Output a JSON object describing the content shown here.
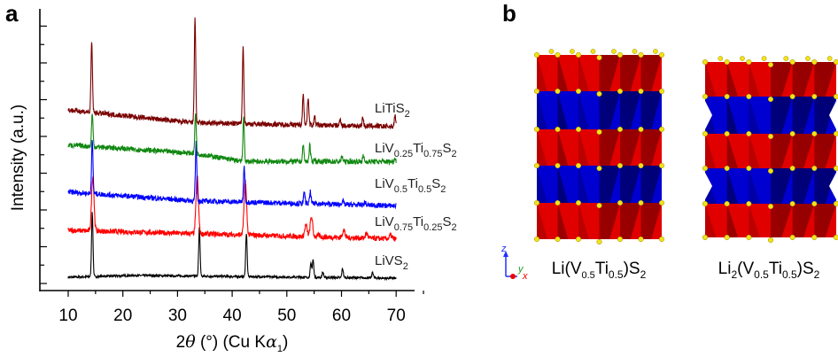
{
  "panels": {
    "a": "a",
    "b": "b"
  },
  "chart_data": {
    "type": "line",
    "xlabel_parts": {
      "pre": "2",
      "theta": "θ",
      "mid": " (°) (Cu K",
      "alpha": "α",
      "sub": "1",
      "post": ")"
    },
    "ylabel": "Intensity (a.u.)",
    "xlim": [
      5,
      75
    ],
    "ylim": [
      0,
      15.3
    ],
    "xticks": [
      10,
      20,
      30,
      40,
      50,
      60,
      70
    ],
    "y_tick_labels": "none",
    "grid": false,
    "legend": "labels at right end of each trace",
    "series": [
      {
        "name": "LiVS2",
        "label": {
          "main": "LiVS",
          "s1": "2"
        },
        "color": "#000000",
        "baseline": [
          [
            10,
            0.72
          ],
          [
            22,
            0.82
          ],
          [
            70,
            0.67
          ]
        ],
        "peaks": [
          [
            14.4,
            4.2
          ],
          [
            34.0,
            3.4
          ],
          [
            42.6,
            3.1
          ],
          [
            54.4,
            1.44
          ],
          [
            54.8,
            1.68
          ],
          [
            56.6,
            1.0
          ],
          [
            60.2,
            1.2
          ],
          [
            65.7,
            1.0
          ]
        ]
      },
      {
        "name": "LiV0.75Ti0.25S2",
        "label": {
          "main": "LiV",
          "s1": "0.75",
          "mid": "Ti",
          "s2": "0.25",
          "end": "S",
          "s3": "2"
        },
        "color": "#ff0000",
        "baseline": [
          [
            10,
            3.27
          ],
          [
            70,
            2.8
          ]
        ],
        "peaks": [
          [
            14.5,
            6.2
          ],
          [
            33.6,
            6.2
          ],
          [
            42.4,
            6.0
          ],
          [
            53.5,
            3.55
          ],
          [
            54.5,
            4.0
          ],
          [
            55.8,
            3.0
          ],
          [
            60.4,
            3.3
          ],
          [
            64.6,
            3.1
          ],
          [
            69.0,
            3.0
          ]
        ]
      },
      {
        "name": "LiV0.5Ti0.5S2",
        "label": {
          "main": "LiV",
          "s1": "0.5",
          "mid": "Ti",
          "s2": "0.5",
          "end": "S",
          "s3": "2"
        },
        "color": "#0000ff",
        "baseline": [
          [
            10,
            5.35
          ],
          [
            33,
            4.87
          ],
          [
            70,
            4.6
          ]
        ],
        "peaks": [
          [
            14.4,
            8.1
          ],
          [
            33.4,
            8.0
          ],
          [
            42.2,
            6.7
          ],
          [
            53.2,
            5.3
          ],
          [
            54.3,
            5.35
          ],
          [
            55.4,
            4.8
          ],
          [
            60.2,
            4.9
          ],
          [
            64.3,
            4.8
          ]
        ]
      },
      {
        "name": "LiV0.25Ti0.75S2",
        "label": {
          "main": "LiV",
          "s1": "0.25",
          "mid": "Ti",
          "s2": "0.75",
          "end": "S",
          "s3": "2"
        },
        "color": "#118811",
        "baseline": [
          [
            10,
            7.9
          ],
          [
            33,
            7.45
          ],
          [
            42,
            7.0
          ],
          [
            70,
            7.0
          ]
        ],
        "peaks": [
          [
            14.4,
            9.6
          ],
          [
            33.3,
            9.6
          ],
          [
            42.1,
            9.3
          ],
          [
            53.0,
            7.9
          ],
          [
            54.2,
            7.9
          ],
          [
            55.1,
            7.15
          ],
          [
            60.1,
            7.3
          ],
          [
            64.0,
            7.3
          ],
          [
            69.8,
            7.2
          ]
        ]
      },
      {
        "name": "LiTiS2",
        "label": {
          "main": "LiTiS",
          "s1": "2"
        },
        "color": "#7a0000",
        "baseline": [
          [
            10,
            9.8
          ],
          [
            33,
            9.1
          ],
          [
            70,
            8.9
          ]
        ],
        "peaks": [
          [
            14.3,
            13.5
          ],
          [
            33.2,
            14.7
          ],
          [
            42.0,
            13.2
          ],
          [
            53.0,
            10.7
          ],
          [
            53.9,
            10.5
          ],
          [
            55.1,
            9.4
          ],
          [
            59.8,
            9.3
          ],
          [
            63.9,
            9.4
          ],
          [
            69.8,
            9.5
          ]
        ]
      }
    ]
  },
  "structures": {
    "left_label": {
      "a": "Li(V",
      "s1": "0.5",
      "b": "Ti",
      "s2": "0.5",
      "c": ")S",
      "s3": "2"
    },
    "right_label": {
      "a": "Li",
      "s0": "2",
      "b": "(V",
      "s1": "0.5",
      "c": "Ti",
      "s2": "0.5",
      "d": ")S",
      "s3": "2"
    },
    "axes": {
      "z": "z",
      "y": "y",
      "x": "x"
    },
    "colors": {
      "red": "#e00000",
      "dark_red": "#8e0000",
      "blue": "#0000d0",
      "dark_blue": "#00006e",
      "sulfur": "#f2e21a"
    }
  }
}
